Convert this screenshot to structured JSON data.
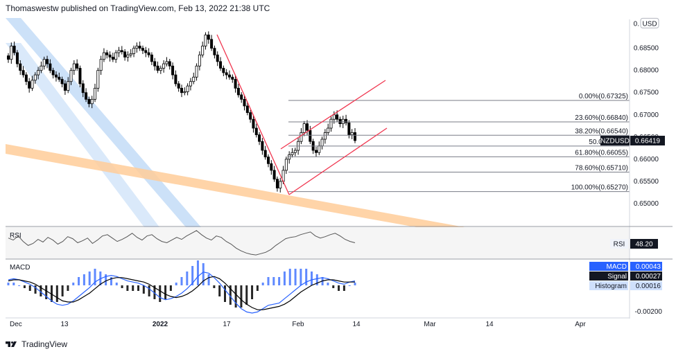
{
  "header": {
    "text": "Thomaswestw published on TradingView.com, Feb 13, 2022 21:38 UTC"
  },
  "footer": {
    "brand": "TradingView"
  },
  "currency_badge": "USD",
  "colors": {
    "candle": "#000000",
    "fib_line": "#787b86",
    "channel": "#f0364f",
    "orange_band": "#ffcc99",
    "blue_band": "#bbd7f5",
    "rsi": "#555555",
    "macd": "#2962ff",
    "signal": "#000000",
    "hist_pos": "#2962ff",
    "hist_neg": "#000000"
  },
  "chart_data": [
    {
      "type": "candlestick",
      "symbol": "NZDUSD",
      "last_price": "0.66419",
      "ylim": [
        0.645,
        0.6915
      ],
      "y_ticks": [
        "0.68500",
        "0.68000",
        "0.67500",
        "0.67000",
        "0.66500",
        "0.66000",
        "0.65500",
        "0.65000"
      ],
      "x_ticks": [
        "Dec",
        "13",
        "2022",
        "17",
        "Feb",
        "14",
        "Mar",
        "14",
        "Apr"
      ],
      "close": [
        0.6825,
        0.6855,
        0.684,
        0.6815,
        0.68,
        0.679,
        0.6775,
        0.676,
        0.6778,
        0.679,
        0.68,
        0.681,
        0.6825,
        0.6815,
        0.68,
        0.679,
        0.6785,
        0.678,
        0.677,
        0.6755,
        0.6775,
        0.68,
        0.6815,
        0.6805,
        0.677,
        0.675,
        0.6735,
        0.6725,
        0.6735,
        0.676,
        0.68,
        0.6825,
        0.684,
        0.6835,
        0.683,
        0.6825,
        0.684,
        0.6845,
        0.6842,
        0.683,
        0.6835,
        0.6838,
        0.685,
        0.6855,
        0.685,
        0.6845,
        0.684,
        0.6835,
        0.682,
        0.681,
        0.68,
        0.6805,
        0.6815,
        0.682,
        0.681,
        0.679,
        0.677,
        0.676,
        0.675,
        0.6752,
        0.6765,
        0.6775,
        0.6785,
        0.681,
        0.6835,
        0.6855,
        0.688,
        0.687,
        0.685,
        0.6835,
        0.682,
        0.6805,
        0.6795,
        0.679,
        0.6785,
        0.678,
        0.676,
        0.6745,
        0.6735,
        0.672,
        0.6705,
        0.669,
        0.667,
        0.6655,
        0.664,
        0.662,
        0.6605,
        0.659,
        0.6575,
        0.6555,
        0.6535,
        0.655,
        0.6575,
        0.66,
        0.661,
        0.6615,
        0.662,
        0.664,
        0.666,
        0.668,
        0.6665,
        0.664,
        0.662,
        0.6615,
        0.663,
        0.6645,
        0.666,
        0.667,
        0.669,
        0.67,
        0.669,
        0.668,
        0.669,
        0.6682,
        0.6655,
        0.666,
        0.6642
      ],
      "fib_levels": [
        {
          "label": "0.00%(0.67325)",
          "price": 0.67325
        },
        {
          "label": "23.60%(0.66840)",
          "price": 0.6684
        },
        {
          "label": "38.20%(0.66540)",
          "price": 0.6654
        },
        {
          "label": "50.00%(0.66",
          "price": 0.66297
        },
        {
          "label": "61.80%(0.66055)",
          "price": 0.66055
        },
        {
          "label": "78.60%(0.65710)",
          "price": 0.6571
        },
        {
          "label": "100.00%(0.65270)",
          "price": 0.6527
        }
      ]
    },
    {
      "type": "line",
      "name": "RSI",
      "label": "RSI",
      "last_value": "48.20",
      "values": [
        55,
        52,
        58,
        50,
        44,
        47,
        53,
        49,
        56,
        52,
        46,
        50,
        57,
        54,
        48,
        51,
        55,
        47,
        52,
        58,
        60,
        55,
        50,
        53,
        57,
        62,
        56,
        52,
        58,
        60,
        54,
        50,
        48,
        52,
        56,
        53,
        58,
        62,
        66,
        60,
        55,
        52,
        58,
        56,
        50,
        46,
        40,
        36,
        33,
        31,
        30,
        32,
        34,
        38,
        44,
        49,
        54,
        56,
        57,
        60,
        62,
        64,
        58,
        55,
        57,
        60,
        62,
        58,
        53,
        50,
        48
      ]
    },
    {
      "type": "line",
      "name": "MACD",
      "macd_label": "MACD",
      "macd_value": "0.00043",
      "signal_label": "Signal",
      "signal_value": "0.00027",
      "histogram_label": "Histogram",
      "histogram_value": "0.00016",
      "y_tick": "-0.00200",
      "macd": [
        0.0005,
        0.0006,
        0.0005,
        0.0003,
        0.0001,
        -0.0002,
        -0.0006,
        -0.001,
        -0.0014,
        -0.0017,
        -0.0018,
        -0.0017,
        -0.0014,
        -0.001,
        -0.0006,
        -0.0002,
        0.0003,
        0.0006,
        0.0008,
        0.0009,
        0.0008,
        0.0006,
        0.0004,
        0.0003,
        0.0002,
        0.0,
        -0.0003,
        -0.0007,
        -0.0011,
        -0.0013,
        -0.0012,
        -0.001,
        -0.0007,
        -0.0003,
        0.0002,
        0.0008,
        0.0012,
        0.0011,
        0.0007,
        0.0002,
        -0.0004,
        -0.001,
        -0.0016,
        -0.0021,
        -0.0024,
        -0.0025,
        -0.0024,
        -0.0021,
        -0.0018,
        -0.0017,
        -0.0016,
        -0.0012,
        -0.0008,
        -0.0004,
        0.0,
        0.0003,
        0.0005,
        0.0006,
        0.0007,
        0.0006,
        0.0004,
        0.0002,
        0.0001,
        0.0003,
        0.0004
      ],
      "signal": [
        0.0004,
        0.0005,
        0.0005,
        0.0004,
        0.0003,
        0.0001,
        -0.0002,
        -0.0005,
        -0.0008,
        -0.0011,
        -0.0014,
        -0.0015,
        -0.0015,
        -0.0013,
        -0.001,
        -0.0007,
        -0.0003,
        0.0001,
        0.0004,
        0.0006,
        0.0007,
        0.0007,
        0.0006,
        0.0005,
        0.0004,
        0.0003,
        0.0001,
        -0.0002,
        -0.0005,
        -0.0008,
        -0.001,
        -0.0011,
        -0.001,
        -0.0008,
        -0.0005,
        -0.0001,
        0.0004,
        0.0007,
        0.0008,
        0.0006,
        0.0002,
        -0.0003,
        -0.0008,
        -0.0013,
        -0.0017,
        -0.002,
        -0.0022,
        -0.0022,
        -0.0021,
        -0.002,
        -0.0019,
        -0.0017,
        -0.0014,
        -0.001,
        -0.0006,
        -0.0003,
        0.0,
        0.0002,
        0.0004,
        0.0005,
        0.0005,
        0.0004,
        0.0003,
        0.0003,
        0.0003
      ]
    }
  ]
}
